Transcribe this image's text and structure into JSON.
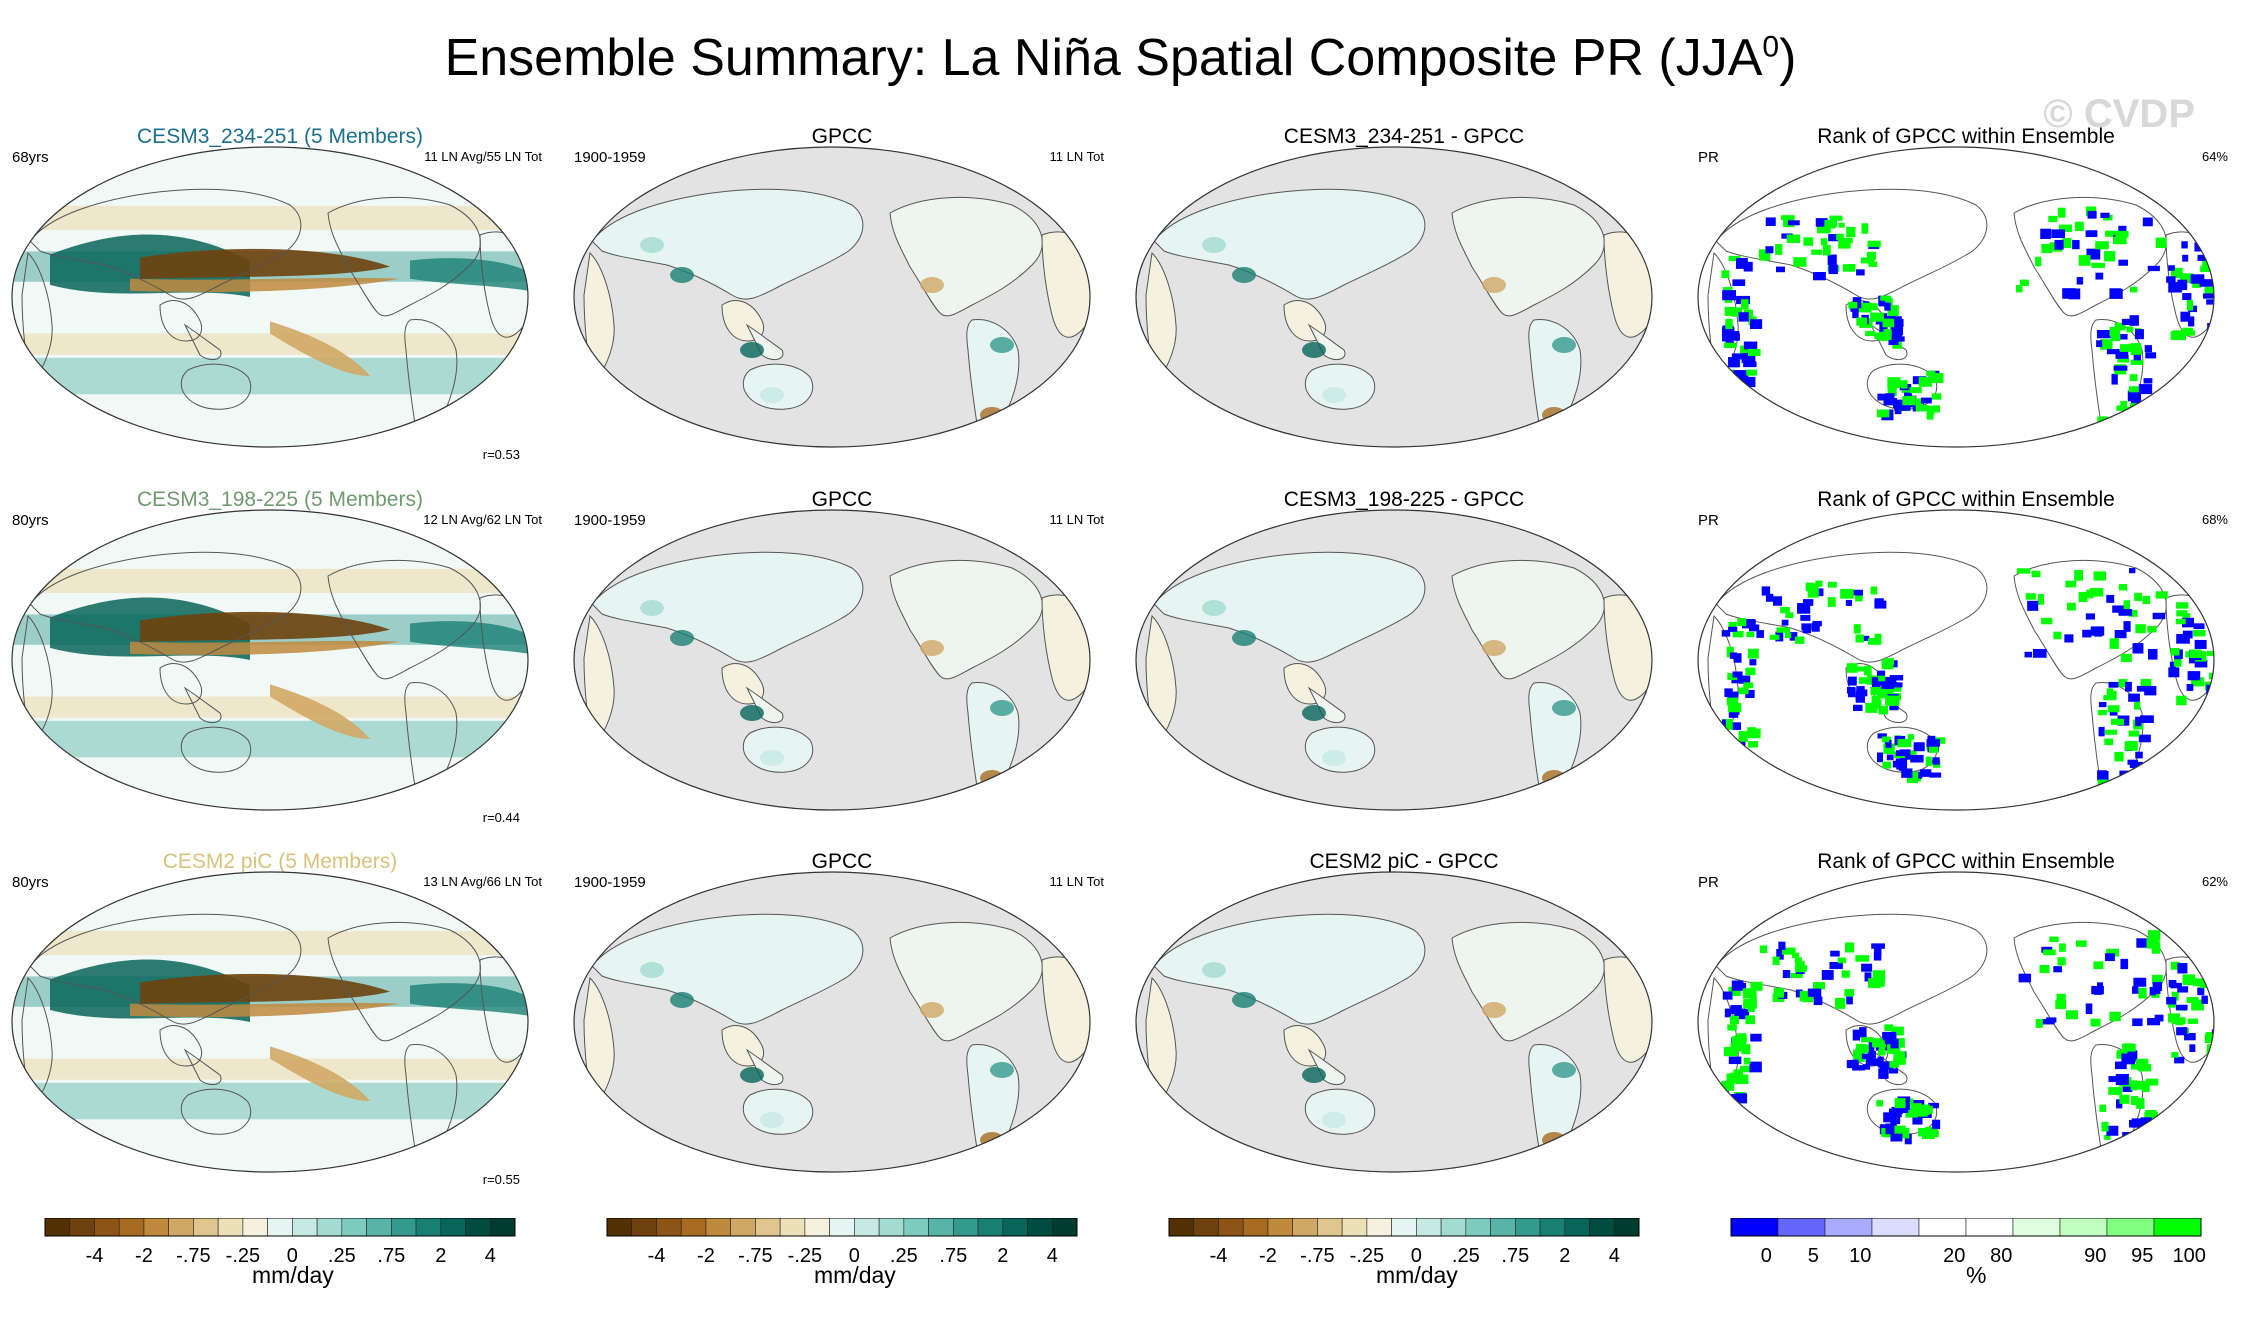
{
  "title": "Ensemble Summary: La Niña Spatial Composite PR (JJA",
  "title_sup": "0",
  "title_close": ")",
  "watermark": "© CVDP",
  "rows": [
    {
      "model": {
        "title": "CESM3_234-251 (5 Members)",
        "title_color": "#1b6f8a",
        "left": "68yrs",
        "right": "11 LN Avg/55 LN Tot",
        "corr": "r=0.53"
      },
      "obs": {
        "title": "GPCC",
        "left": "1900-1959",
        "right": "11 LN Tot"
      },
      "diff": {
        "title": "CESM3_234-251 - GPCC"
      },
      "rank": {
        "title": "Rank of GPCC within Ensemble",
        "left": "PR",
        "right": "64%"
      }
    },
    {
      "model": {
        "title": "CESM3_198-225 (5 Members)",
        "title_color": "#6f9a6f",
        "left": "80yrs",
        "right": "12 LN Avg/62 LN Tot",
        "corr": "r=0.44"
      },
      "obs": {
        "title": "GPCC",
        "left": "1900-1959",
        "right": "11 LN Tot"
      },
      "diff": {
        "title": "CESM3_198-225 - GPCC"
      },
      "rank": {
        "title": "Rank of GPCC within Ensemble",
        "left": "PR",
        "right": "68%"
      }
    },
    {
      "model": {
        "title": "CESM2 piC (5 Members)",
        "title_color": "#d8c27e",
        "left": "80yrs",
        "right": "13 LN Avg/66 LN Tot",
        "corr": "r=0.55"
      },
      "obs": {
        "title": "GPCC",
        "left": "1900-1959",
        "right": "11 LN Tot"
      },
      "diff": {
        "title": "CESM2 piC - GPCC"
      },
      "rank": {
        "title": "Rank of GPCC within Ensemble",
        "left": "PR",
        "right": "62%"
      }
    }
  ],
  "colorbars": {
    "pr": {
      "colors": [
        "#543005",
        "#6f420d",
        "#8c5415",
        "#a86b22",
        "#bf8a3e",
        "#d0a865",
        "#dfc58e",
        "#ece0b8",
        "#f6f1de",
        "#e6f4f2",
        "#c7e9e3",
        "#a3dbd1",
        "#7ecbbf",
        "#57b4a7",
        "#349a8d",
        "#1a7f73",
        "#086559",
        "#024b40",
        "#003c30"
      ],
      "labels": [
        "-4",
        "-2",
        "-.75",
        "-.25",
        "0",
        ".25",
        ".75",
        "2",
        "4"
      ],
      "units": "mm/day"
    },
    "rank": {
      "colors": [
        "#0000ff",
        "#6666ff",
        "#aaaaff",
        "#dcdcff",
        "#ffffff",
        "#ffffff",
        "#e0ffe0",
        "#c0ffc0",
        "#80ff80",
        "#00ff00"
      ],
      "labels": [
        "0",
        "5",
        "10",
        "20",
        "80",
        "90",
        "95",
        "100"
      ],
      "units": "%"
    }
  },
  "colors": {
    "land_mask": "#e3e3e3",
    "ocean": "#f1f9f7",
    "blue": "#0000ff",
    "green": "#00ff00"
  }
}
